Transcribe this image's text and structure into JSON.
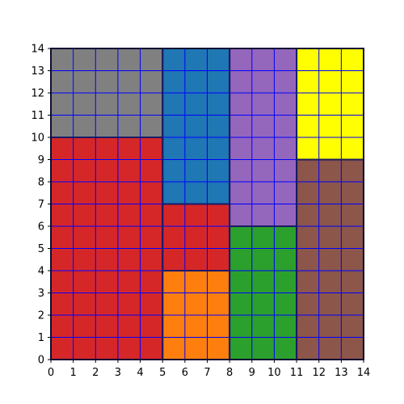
{
  "chart_data": {
    "type": "heatmap",
    "title": "",
    "xlabel": "",
    "ylabel": "",
    "xlim": [
      0,
      14
    ],
    "ylim": [
      0,
      14
    ],
    "grid": true,
    "grid_step": 1,
    "grid_color": "#0000ff",
    "region_border_color": "#1a1a66",
    "x_ticks": [
      "0",
      "1",
      "2",
      "3",
      "4",
      "5",
      "6",
      "7",
      "8",
      "9",
      "10",
      "11",
      "12",
      "13",
      "14"
    ],
    "y_ticks": [
      "0",
      "1",
      "2",
      "3",
      "4",
      "5",
      "6",
      "7",
      "8",
      "9",
      "10",
      "11",
      "12",
      "13",
      "14"
    ],
    "regions": [
      {
        "color_name": "gray",
        "color": "#808080",
        "x": [
          0,
          5
        ],
        "y": [
          10,
          14
        ]
      },
      {
        "color_name": "red",
        "color": "#d62728",
        "x": [
          0,
          5
        ],
        "y": [
          0,
          10
        ]
      },
      {
        "color_name": "blue",
        "color": "#1f77b4",
        "x": [
          5,
          8
        ],
        "y": [
          7,
          14
        ]
      },
      {
        "color_name": "red",
        "color": "#d62728",
        "x": [
          5,
          8
        ],
        "y": [
          4,
          7
        ]
      },
      {
        "color_name": "orange",
        "color": "#ff7f0e",
        "x": [
          5,
          8
        ],
        "y": [
          0,
          4
        ]
      },
      {
        "color_name": "purple",
        "color": "#9467bd",
        "x": [
          8,
          11
        ],
        "y": [
          6,
          14
        ]
      },
      {
        "color_name": "green",
        "color": "#2ca02c",
        "x": [
          8,
          11
        ],
        "y": [
          0,
          6
        ]
      },
      {
        "color_name": "yellow",
        "color": "#ffff00",
        "x": [
          11,
          14
        ],
        "y": [
          9,
          14
        ]
      },
      {
        "color_name": "brown",
        "color": "#8c564b",
        "x": [
          11,
          14
        ],
        "y": [
          0,
          9
        ]
      }
    ]
  }
}
